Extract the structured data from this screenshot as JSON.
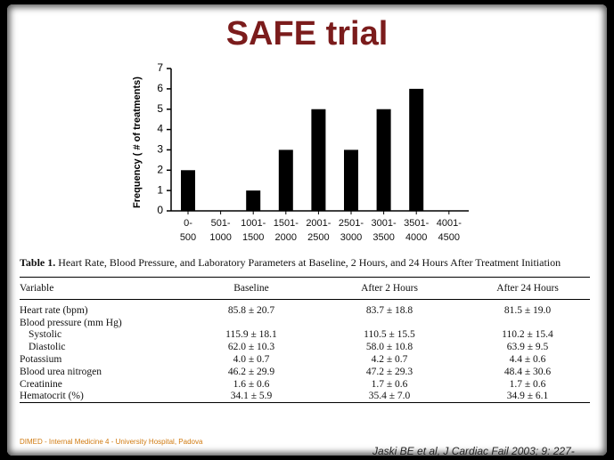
{
  "title": "SAFE trial",
  "chart_data": {
    "type": "bar",
    "y_label": "Frequency ( # of treatments)",
    "categories": [
      "0-\n500",
      "501-\n1000",
      "1001-\n1500",
      "1501-\n2000",
      "2001-\n2500",
      "2501-\n3000",
      "3001-\n3500",
      "3501-\n4000",
      "4001-\n4500"
    ],
    "values": [
      2,
      0,
      1,
      3,
      5,
      3,
      5,
      6,
      0
    ],
    "color": "#000000",
    "ylim": [
      0,
      7
    ],
    "yticks": [
      0,
      1,
      2,
      3,
      4,
      5,
      6,
      7
    ]
  },
  "table": {
    "caption_label": "Table 1.",
    "caption": "Heart Rate, Blood Pressure, and Laboratory Parameters at Baseline, 2 Hours, and 24 Hours After Treatment Initiation",
    "header": [
      "Variable",
      "Baseline",
      "After 2 Hours",
      "After 24 Hours"
    ],
    "rows": [
      [
        "Heart rate (bpm)",
        "85.8 ± 20.7",
        "83.7 ± 18.8",
        "81.5 ± 19.0"
      ],
      [
        "Blood pressure (mm Hg)"
      ],
      [
        "Systolic",
        "115.9 ± 18.1",
        "110.5 ± 15.5",
        "110.2 ± 15.4"
      ],
      [
        "Diastolic",
        "62.0 ± 10.3",
        "58.0 ± 10.8",
        "63.9 ± 9.5"
      ],
      [
        "Potassium",
        "4.0 ± 0.7",
        "4.2 ± 0.7",
        "4.4 ± 0.6"
      ],
      [
        "Blood urea nitrogen",
        "46.2 ± 29.9",
        "47.2 ± 29.3",
        "48.4 ± 30.6"
      ],
      [
        "Creatinine",
        "1.6 ± 0.6",
        "1.7 ± 0.6",
        "1.7 ± 0.6"
      ],
      [
        "Hematocrit (%)",
        "34.1 ± 5.9",
        "35.4 ± 7.0",
        "34.9 ± 6.1"
      ]
    ]
  },
  "footer": "DIMED - Internal Medicine 4 - University Hospital, Padova",
  "citation": "Jaski BE et al, J Cardiac Fail 2003; 9: 227-"
}
